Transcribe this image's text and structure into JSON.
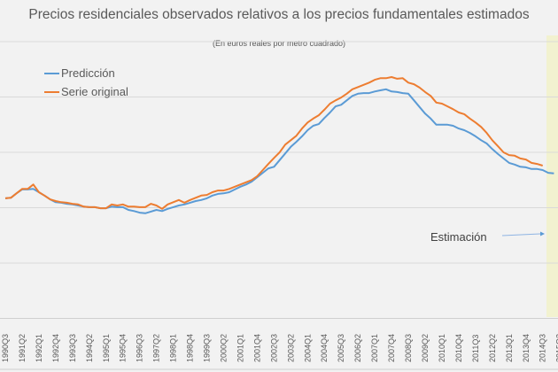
{
  "chart_data": {
    "type": "line",
    "title": "Precios residenciales observados relativos a los precios fundamentales estimados",
    "subtitle": "(En euros reales por metro cuadrado)",
    "xlabel": "",
    "ylabel": "",
    "x_start": "1990Q3",
    "x_frequency": "quarterly",
    "tick_labels": [
      "1990Q3",
      "1991Q2",
      "1992Q1",
      "1992Q4",
      "1993Q3",
      "1994Q2",
      "1995Q1",
      "1995Q4",
      "1996Q3",
      "1997Q2",
      "1998Q1",
      "1998Q4",
      "1999Q3",
      "2000Q2",
      "2001Q1",
      "2001Q4",
      "2002Q3",
      "2003Q2",
      "2004Q1",
      "2004Q4",
      "2005Q3",
      "2006Q2",
      "2007Q1",
      "2007Q4",
      "2008Q3",
      "2009Q2",
      "2010Q1",
      "2010Q4",
      "2011Q3",
      "2012Q2",
      "2013Q1",
      "2013Q4",
      "2014Q3",
      "2015Q2"
    ],
    "y_tick_labels_shown": false,
    "ylim": [
      0,
      5
    ],
    "grid": true,
    "legend_position": "top-left",
    "series": [
      {
        "name": "Predicción",
        "color": "#5b9bd5",
        "values": [
          2.17,
          2.18,
          2.26,
          2.33,
          2.33,
          2.34,
          2.28,
          2.22,
          2.15,
          2.1,
          2.09,
          2.07,
          2.06,
          2.04,
          2.02,
          2.01,
          2.01,
          1.99,
          1.99,
          2.02,
          2.01,
          2.01,
          1.96,
          1.94,
          1.91,
          1.9,
          1.93,
          1.96,
          1.94,
          1.98,
          2.01,
          2.04,
          2.06,
          2.09,
          2.12,
          2.14,
          2.17,
          2.22,
          2.25,
          2.26,
          2.28,
          2.33,
          2.38,
          2.42,
          2.47,
          2.55,
          2.63,
          2.71,
          2.74,
          2.86,
          2.98,
          3.1,
          3.19,
          3.29,
          3.4,
          3.48,
          3.51,
          3.62,
          3.72,
          3.83,
          3.86,
          3.94,
          4.02,
          4.06,
          4.07,
          4.07,
          4.1,
          4.12,
          4.14,
          4.1,
          4.09,
          4.07,
          4.06,
          3.94,
          3.82,
          3.7,
          3.61,
          3.5,
          3.5,
          3.5,
          3.48,
          3.43,
          3.4,
          3.35,
          3.29,
          3.22,
          3.16,
          3.06,
          2.97,
          2.89,
          2.81,
          2.78,
          2.74,
          2.73,
          2.7,
          2.7,
          2.68,
          2.63,
          2.62
        ]
      },
      {
        "name": "Serie original",
        "color": "#ed7d31",
        "values": [
          2.17,
          2.18,
          2.26,
          2.34,
          2.34,
          2.42,
          2.28,
          2.22,
          2.15,
          2.12,
          2.1,
          2.09,
          2.07,
          2.06,
          2.02,
          2.01,
          2.01,
          1.99,
          1.99,
          2.06,
          2.04,
          2.06,
          2.02,
          2.02,
          2.01,
          2.01,
          2.07,
          2.04,
          1.98,
          2.06,
          2.1,
          2.14,
          2.09,
          2.14,
          2.18,
          2.22,
          2.23,
          2.28,
          2.31,
          2.31,
          2.34,
          2.38,
          2.42,
          2.46,
          2.5,
          2.57,
          2.68,
          2.79,
          2.9,
          3.0,
          3.14,
          3.22,
          3.3,
          3.43,
          3.54,
          3.61,
          3.67,
          3.77,
          3.88,
          3.94,
          3.99,
          4.06,
          4.14,
          4.18,
          4.22,
          4.26,
          4.31,
          4.34,
          4.34,
          4.36,
          4.33,
          4.34,
          4.26,
          4.23,
          4.17,
          4.09,
          4.02,
          3.9,
          3.88,
          3.83,
          3.78,
          3.72,
          3.69,
          3.61,
          3.54,
          3.46,
          3.35,
          3.22,
          3.11,
          3.0,
          2.95,
          2.94,
          2.89,
          2.87,
          2.81,
          2.79,
          2.76
        ]
      }
    ],
    "annotation": "Estimación",
    "estimation_band_color": "#f2f2d0"
  }
}
